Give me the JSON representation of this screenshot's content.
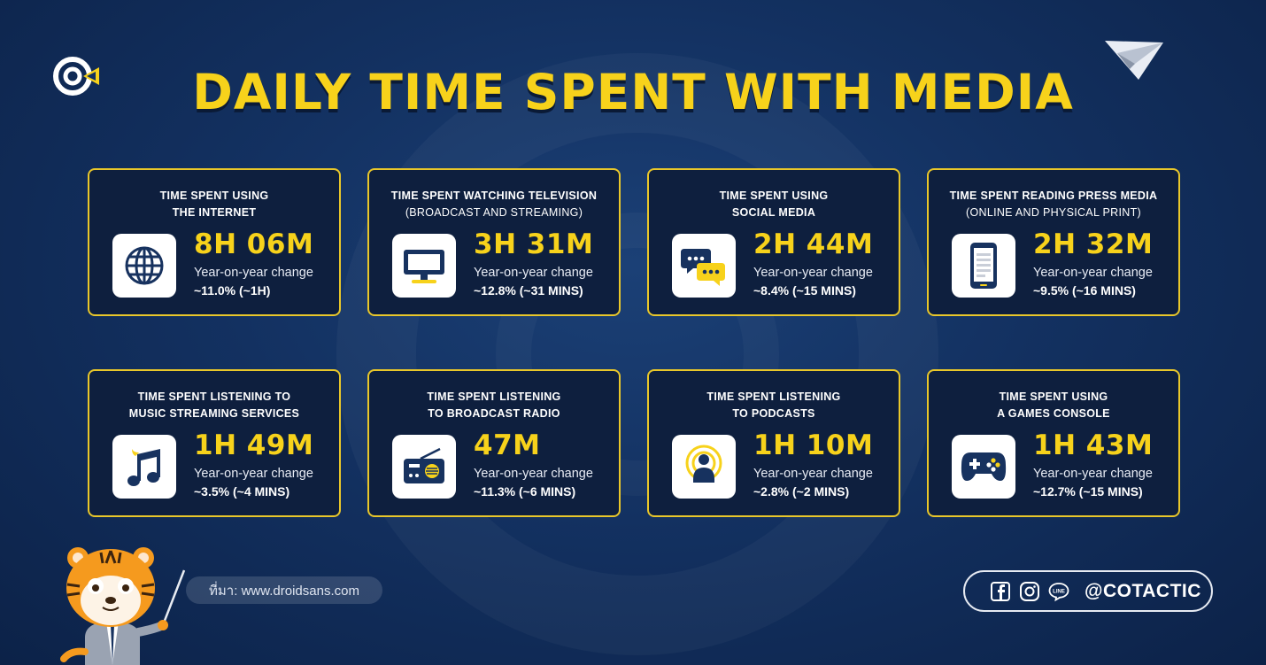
{
  "title": "DAILY TIME SPENT WITH MEDIA",
  "colors": {
    "accent": "#f7d21b",
    "background": "#133161",
    "card": "#0e1f3e",
    "icon_dark": "#17325f"
  },
  "cards": [
    {
      "line1": "TIME SPENT USING",
      "line2": "THE INTERNET",
      "sub": "",
      "value": "8H 06M",
      "yoy_label": "Year-on-year change",
      "yoy_value": "~11.0% (~1H)",
      "icon": "globe-icon"
    },
    {
      "line1": "TIME SPENT WATCHING TELEVISION",
      "line2": "",
      "sub": "(BROADCAST AND STREAMING)",
      "value": "3H 31M",
      "yoy_label": "Year-on-year change",
      "yoy_value": "~12.8% (~31 MINS)",
      "icon": "tv-icon"
    },
    {
      "line1": "TIME SPENT USING",
      "line2": "SOCIAL MEDIA",
      "sub": "",
      "value": "2H 44M",
      "yoy_label": "Year-on-year change",
      "yoy_value": "~8.4% (~15 MINS)",
      "icon": "chat-bubbles-icon"
    },
    {
      "line1": "TIME SPENT READING PRESS MEDIA",
      "line2": "",
      "sub": "(ONLINE AND PHYSICAL PRINT)",
      "value": "2H 32M",
      "yoy_label": "Year-on-year change",
      "yoy_value": "~9.5% (~16 MINS)",
      "icon": "phone-icon"
    },
    {
      "line1": "TIME SPENT LISTENING TO",
      "line2": "MUSIC STREAMING SERVICES",
      "sub": "",
      "value": "1H 49M",
      "yoy_label": "Year-on-year change",
      "yoy_value": "~3.5% (~4 MINS)",
      "icon": "music-note-icon"
    },
    {
      "line1": "TIME SPENT LISTENING",
      "line2": "TO BROADCAST RADIO",
      "sub": "",
      "value": "47M",
      "yoy_label": "Year-on-year change",
      "yoy_value": "~11.3% (~6 MINS)",
      "icon": "radio-icon"
    },
    {
      "line1": "TIME SPENT LISTENING",
      "line2": "TO PODCASTS",
      "sub": "",
      "value": "1H 10M",
      "yoy_label": "Year-on-year change",
      "yoy_value": "~2.8% (~2 MINS)",
      "icon": "podcast-icon"
    },
    {
      "line1": "TIME SPENT USING",
      "line2": "A GAMES CONSOLE",
      "sub": "",
      "value": "1H 43M",
      "yoy_label": "Year-on-year change",
      "yoy_value": "~12.7% (~15 MINS)",
      "icon": "gamepad-icon"
    }
  ],
  "source": "ที่มา: www.droidsans.com",
  "social": {
    "handle": "@COTACTIC",
    "icons": [
      "facebook-icon",
      "instagram-icon",
      "line-icon"
    ],
    "line_text": "LINE"
  }
}
